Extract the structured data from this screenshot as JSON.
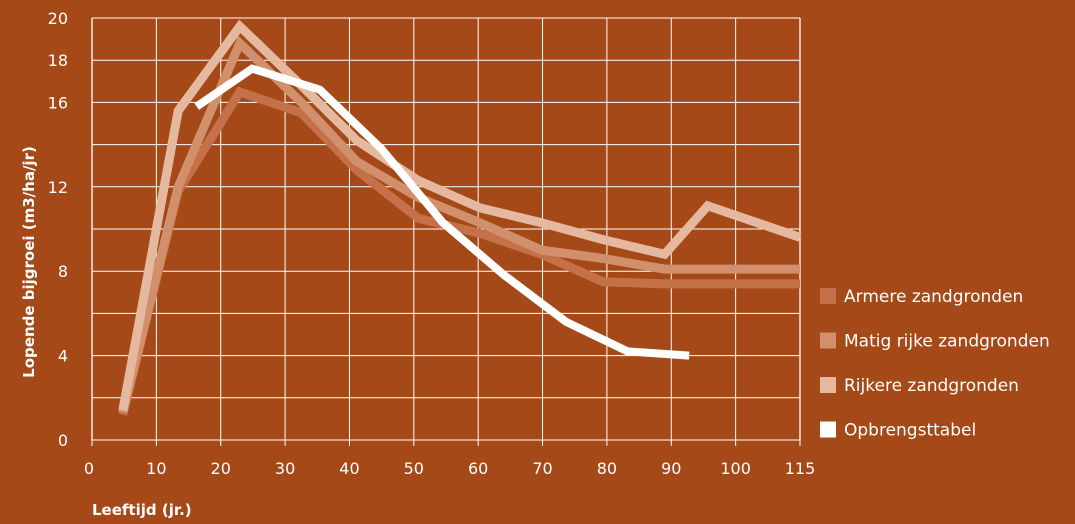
{
  "chart_data": {
    "type": "line",
    "title": "",
    "xlabel": "Leeftijd (jr.)",
    "ylabel": "Lopende bijgroei (m3/ha/jr)",
    "x_ticks": [
      "0",
      "10",
      "20",
      "30",
      "40",
      "50",
      "60",
      "70",
      "80",
      "90",
      "100",
      "115"
    ],
    "y_ticks": [
      "0",
      "4",
      "8",
      "12",
      "16",
      "18",
      "20"
    ],
    "grid": true,
    "legend_position": "right",
    "background_color": "#a44917",
    "series": [
      {
        "name": "Armere zandgronden",
        "color": "#c4714a",
        "points": [
          [
            5,
            1.2
          ],
          [
            14,
            11.8
          ],
          [
            24,
            16.5
          ],
          [
            34,
            15.5
          ],
          [
            43,
            12.8
          ],
          [
            53,
            10.5
          ],
          [
            63,
            9.8
          ],
          [
            73,
            8.8
          ],
          [
            83,
            7.5
          ],
          [
            93,
            7.4
          ],
          [
            115,
            7.4
          ]
        ]
      },
      {
        "name": "Matig rijke zandgronden",
        "color": "#d28f6c",
        "points": [
          [
            5,
            1.3
          ],
          [
            14,
            12.0
          ],
          [
            24,
            18.8
          ],
          [
            34,
            16.0
          ],
          [
            43,
            13.2
          ],
          [
            53,
            11.5
          ],
          [
            63,
            10.3
          ],
          [
            73,
            9.0
          ],
          [
            83,
            8.6
          ],
          [
            93,
            8.1
          ],
          [
            115,
            8.1
          ]
        ]
      },
      {
        "name": "Rijkere zandgronden",
        "color": "#e5b9a0",
        "points": [
          [
            5,
            1.4
          ],
          [
            14,
            15.6
          ],
          [
            24,
            19.6
          ],
          [
            34,
            16.8
          ],
          [
            43,
            14.2
          ],
          [
            53,
            12.3
          ],
          [
            63,
            11.0
          ],
          [
            73,
            10.3
          ],
          [
            83,
            9.5
          ],
          [
            93,
            8.8
          ],
          [
            100,
            11.1
          ],
          [
            115,
            9.6
          ]
        ]
      },
      {
        "name": "Opbrengsttabel",
        "color": "#ffffff",
        "points": [
          [
            17,
            15.8
          ],
          [
            26,
            17.6
          ],
          [
            37,
            16.6
          ],
          [
            47,
            13.8
          ],
          [
            57,
            10.3
          ],
          [
            67,
            7.8
          ],
          [
            77,
            5.6
          ],
          [
            87,
            4.2
          ],
          [
            97,
            4.0
          ]
        ]
      }
    ]
  }
}
